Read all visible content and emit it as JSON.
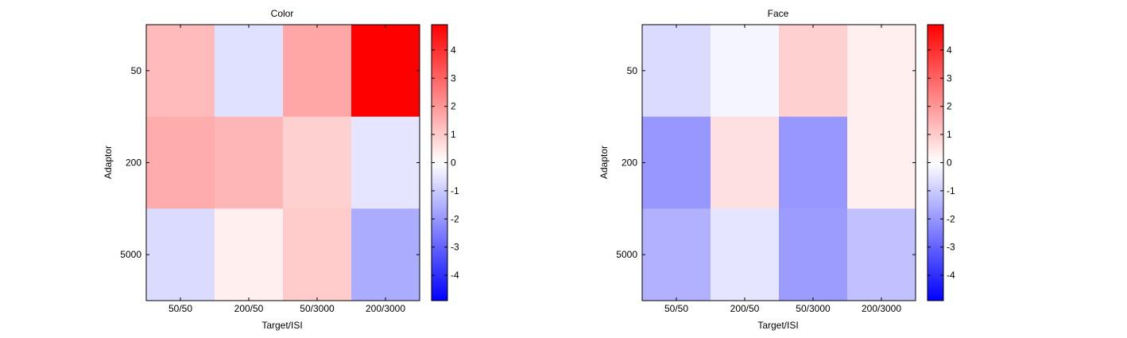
{
  "chart_data": [
    {
      "type": "heatmap",
      "title": "Color",
      "xlabel": "Target/ISI",
      "ylabel": "Adaptor",
      "x_categories": [
        "50/50",
        "200/50",
        "50/3000",
        "200/3000"
      ],
      "y_categories": [
        "50",
        "200",
        "5000"
      ],
      "values": [
        [
          1.3,
          -0.6,
          1.7,
          4.9
        ],
        [
          1.6,
          1.4,
          0.9,
          -0.5
        ],
        [
          -0.7,
          0.3,
          1.0,
          -1.6
        ]
      ],
      "colorbar": {
        "range": [
          -4.9,
          4.9
        ],
        "ticks": [
          4,
          3,
          2,
          1,
          0,
          -1,
          -2,
          -3,
          -4
        ],
        "colormap": "blue-white-red"
      }
    },
    {
      "type": "heatmap",
      "title": "Face",
      "xlabel": "Target/ISI",
      "ylabel": "Adaptor",
      "x_categories": [
        "50/50",
        "200/50",
        "50/3000",
        "200/3000"
      ],
      "y_categories": [
        "50",
        "200",
        "5000"
      ],
      "values": [
        [
          -0.7,
          -0.2,
          0.9,
          0.3
        ],
        [
          -2.0,
          0.6,
          -2.0,
          0.3
        ],
        [
          -1.5,
          -0.5,
          -1.9,
          -1.2
        ]
      ],
      "colorbar": {
        "range": [
          -4.9,
          4.9
        ],
        "ticks": [
          4,
          3,
          2,
          1,
          0,
          -1,
          -2,
          -3,
          -4
        ],
        "colormap": "blue-white-red"
      }
    }
  ],
  "colors": {
    "low": "#0000ff",
    "mid": "#ffffff",
    "high": "#ff0000",
    "axis": "#000000"
  }
}
